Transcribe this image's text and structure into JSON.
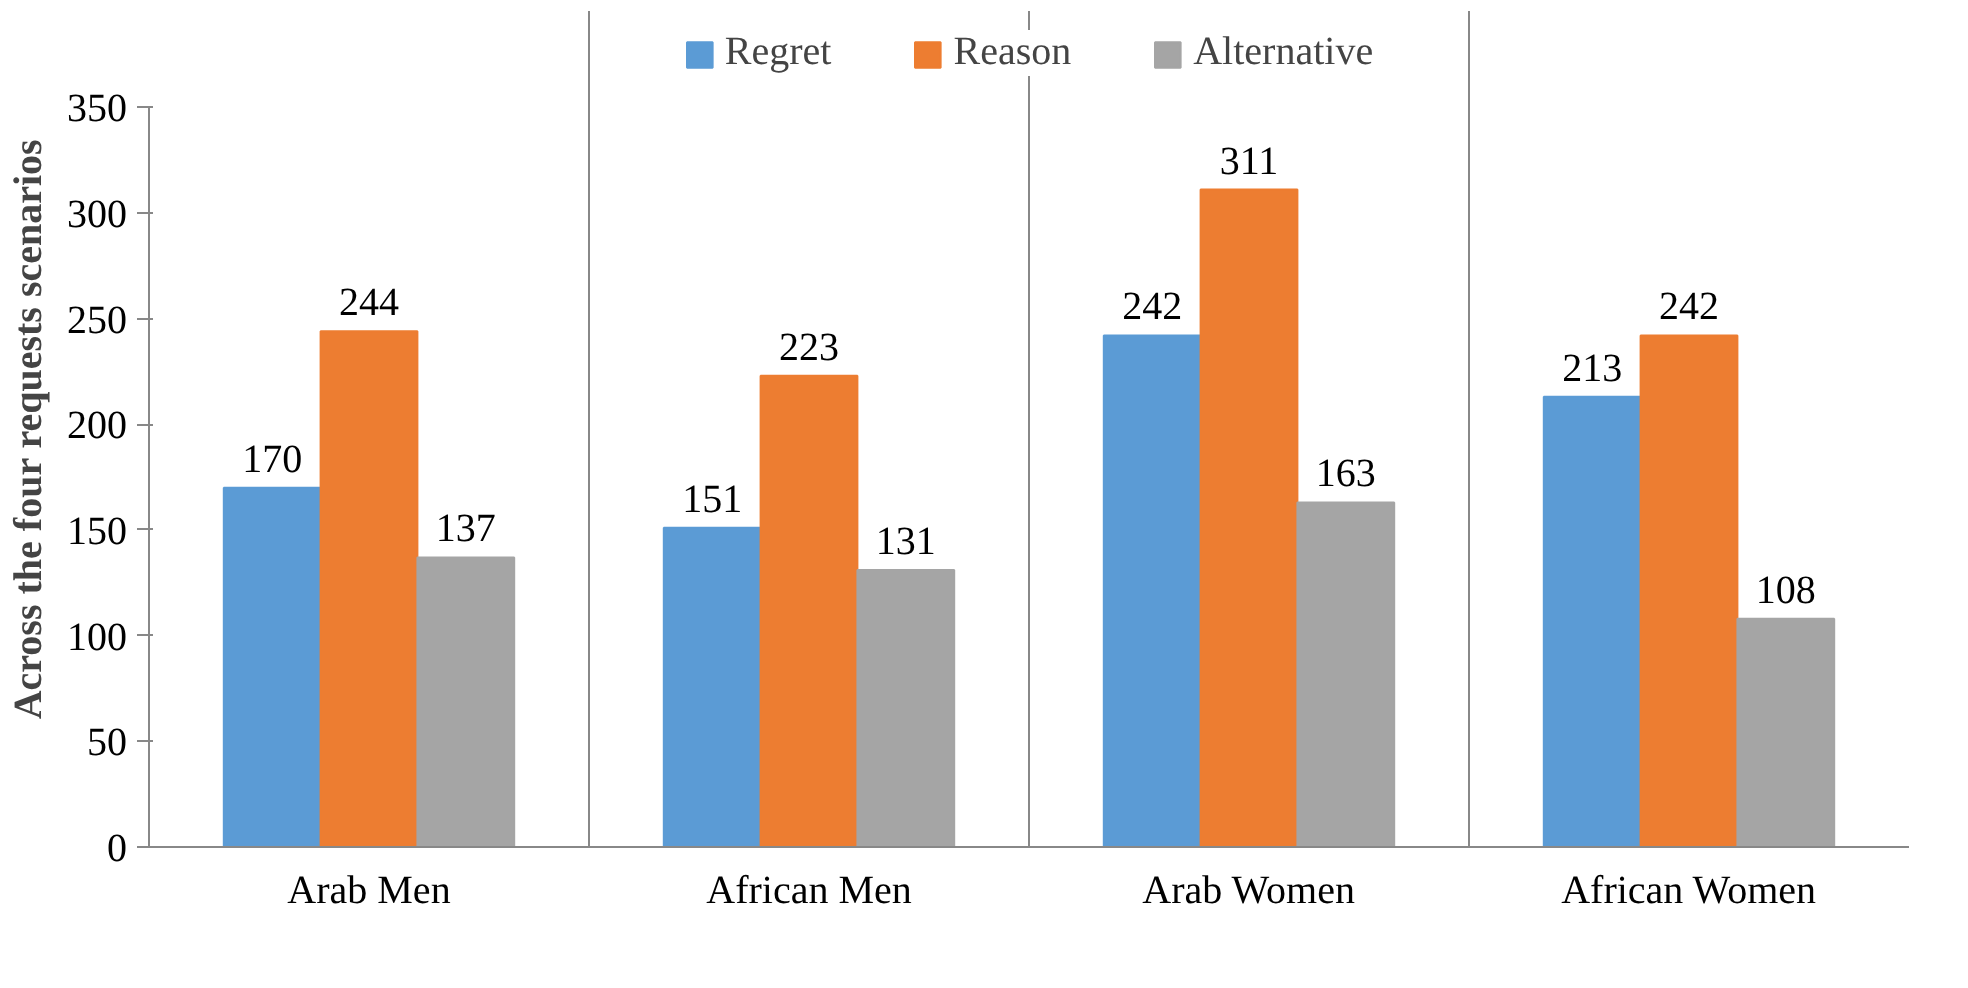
{
  "chart_data": {
    "type": "bar",
    "ylabel": "Across the four requests scenarios",
    "categories": [
      "Arab Men",
      "African Men",
      "Arab Women",
      "African Women"
    ],
    "series": [
      {
        "name": "Regret",
        "color": "#5b9bd5",
        "values": [
          170,
          151,
          242,
          213
        ]
      },
      {
        "name": "Reason",
        "color": "#ed7d31",
        "values": [
          244,
          223,
          311,
          242
        ]
      },
      {
        "name": "Alternative",
        "color": "#a5a5a5",
        "values": [
          137,
          131,
          163,
          108
        ]
      }
    ],
    "ylim": [
      0,
      350
    ],
    "yticks": [
      0,
      50,
      100,
      150,
      200,
      250,
      300,
      350
    ],
    "grid": "x",
    "legend": "top",
    "data_labels": true
  }
}
